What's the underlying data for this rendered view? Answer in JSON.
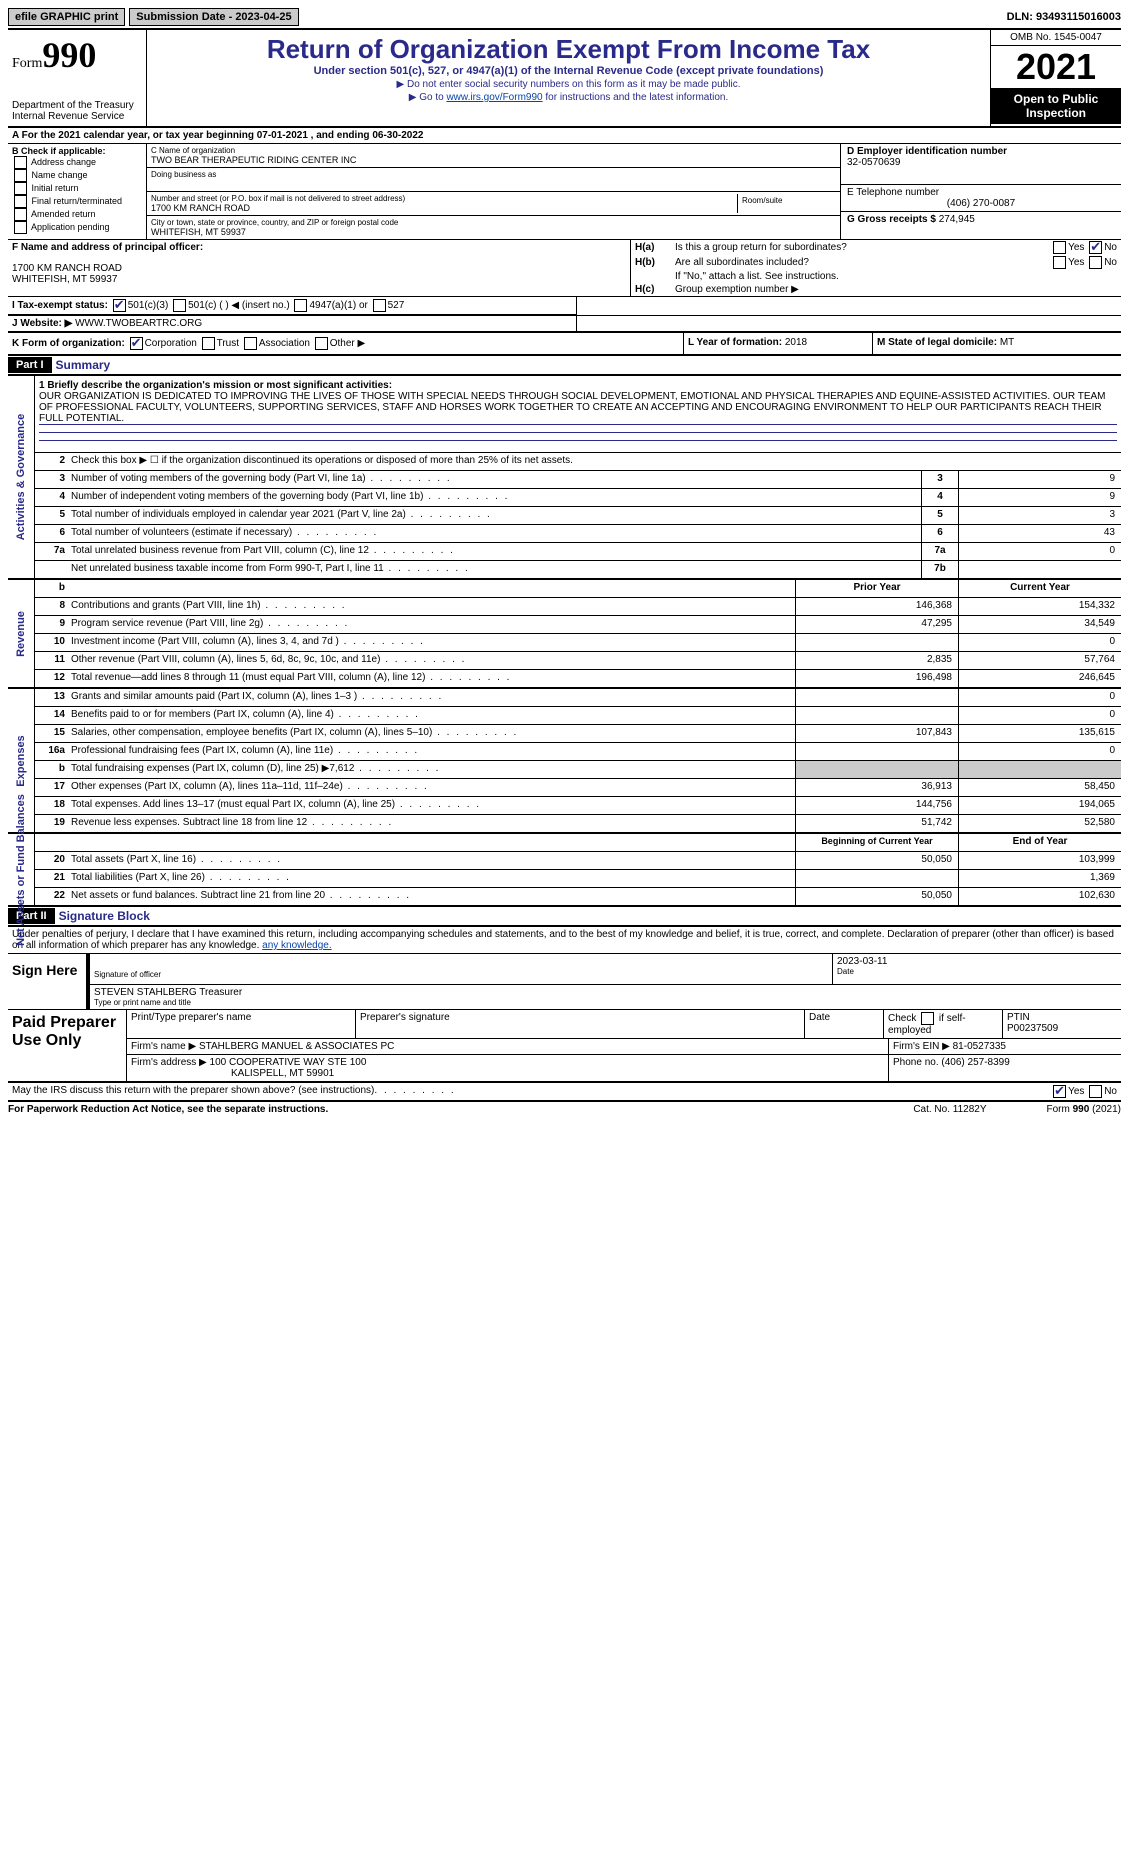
{
  "colors": {
    "accent": "#2a2a8a",
    "link": "#0645ad",
    "shade": "#cbcbcb",
    "black": "#000000",
    "white": "#ffffff"
  },
  "topbar": {
    "efile": "efile GRAPHIC print",
    "sub_label": "Submission Date - 2023-04-25",
    "dln": "DLN: 93493115016003"
  },
  "header": {
    "form_word": "Form",
    "form_num": "990",
    "dept": "Department of the Treasury",
    "irs": "Internal Revenue Service",
    "title": "Return of Organization Exempt From Income Tax",
    "sub": "Under section 501(c), 527, or 4947(a)(1) of the Internal Revenue Code (except private foundations)",
    "note1": "▶ Do not enter social security numbers on this form as it may be made public.",
    "note2_pre": "▶ Go to ",
    "note2_link": "www.irs.gov/Form990",
    "note2_post": " for instructions and the latest information.",
    "omb": "OMB No. 1545-0047",
    "year": "2021",
    "open": "Open to Public Inspection"
  },
  "A": {
    "text": "A For the 2021 calendar year, or tax year beginning 07-01-2021   , and ending 06-30-2022"
  },
  "B": {
    "label": "B Check if applicable:",
    "items": [
      "Address change",
      "Name change",
      "Initial return",
      "Final return/terminated",
      "Amended return",
      "Application pending"
    ]
  },
  "C": {
    "name_lbl": "C Name of organization",
    "name": "TWO BEAR THERAPEUTIC RIDING CENTER INC",
    "dba_lbl": "Doing business as",
    "street_lbl": "Number and street (or P.O. box if mail is not delivered to street address)",
    "street": "1700 KM RANCH ROAD",
    "room_lbl": "Room/suite",
    "city_lbl": "City or town, state or province, country, and ZIP or foreign postal code",
    "city": "WHITEFISH, MT  59937"
  },
  "D": {
    "lbl": "D Employer identification number",
    "val": "32-0570639"
  },
  "E": {
    "lbl": "E Telephone number",
    "val": "(406) 270-0087"
  },
  "G": {
    "lbl": "G Gross receipts $",
    "val": "274,945"
  },
  "F": {
    "lbl": "F  Name and address of principal officer:",
    "line1": "1700 KM RANCH ROAD",
    "line2": "WHITEFISH, MT  59937"
  },
  "H": {
    "a_lbl": "H(a)",
    "a_txt": "Is this a group return for subordinates?",
    "a_yes": false,
    "a_no": true,
    "b_lbl": "H(b)",
    "b_txt": "Are all subordinates included?",
    "b_note": "If \"No,\" attach a list. See instructions.",
    "c_lbl": "H(c)",
    "c_txt": "Group exemption number ▶"
  },
  "I": {
    "lbl": "I  Tax-exempt status:",
    "opts": {
      "c3": true,
      "c_blank": false,
      "a1": false,
      "527": false
    },
    "c3_txt": "501(c)(3)",
    "c_txt": "501(c) (  ) ◀ (insert no.)",
    "a1_txt": "4947(a)(1) or",
    "t527": "527"
  },
  "J": {
    "lbl": "J   Website: ▶",
    "val": "WWW.TWOBEARTRC.ORG"
  },
  "K": {
    "lbl": "K Form of organization:",
    "corp": true,
    "corp_t": "Corporation",
    "trust": false,
    "trust_t": "Trust",
    "assoc": false,
    "assoc_t": "Association",
    "other": false,
    "other_t": "Other ▶"
  },
  "L": {
    "lbl": "L Year of formation:",
    "val": "2018"
  },
  "M": {
    "lbl": "M State of legal domicile:",
    "val": "MT"
  },
  "part1": {
    "hdr": "Part I",
    "title": "Summary"
  },
  "summary": {
    "l1_lbl": "1  Briefly describe the organization's mission or most significant activities:",
    "l1_txt": "OUR ORGANIZATION IS DEDICATED TO IMPROVING THE LIVES OF THOSE WITH SPECIAL NEEDS THROUGH SOCIAL DEVELOPMENT, EMOTIONAL AND PHYSICAL THERAPIES AND EQUINE-ASSISTED ACTIVITIES. OUR TEAM OF PROFESSIONAL FACULTY, VOLUNTEERS, SUPPORTING SERVICES, STAFF AND HORSES WORK TOGETHER TO CREATE AN ACCEPTING AND ENCOURAGING ENVIRONMENT TO HELP OUR PARTICIPANTS REACH THEIR FULL POTENTIAL.",
    "l2": "Check this box ▶ ☐  if the organization discontinued its operations or disposed of more than 25% of its net assets.",
    "rows_ag": [
      {
        "n": "3",
        "t": "Number of voting members of the governing body (Part VI, line 1a)",
        "idx": "3",
        "v": "9"
      },
      {
        "n": "4",
        "t": "Number of independent voting members of the governing body (Part VI, line 1b)",
        "idx": "4",
        "v": "9"
      },
      {
        "n": "5",
        "t": "Total number of individuals employed in calendar year 2021 (Part V, line 2a)",
        "idx": "5",
        "v": "3"
      },
      {
        "n": "6",
        "t": "Total number of volunteers (estimate if necessary)",
        "idx": "6",
        "v": "43"
      },
      {
        "n": "7a",
        "t": "Total unrelated business revenue from Part VIII, column (C), line 12",
        "idx": "7a",
        "v": "0"
      },
      {
        "n": "",
        "t": "Net unrelated business taxable income from Form 990-T, Part I, line 11",
        "idx": "7b",
        "v": ""
      }
    ],
    "col_hdr": {
      "b": "b",
      "prior": "Prior Year",
      "curr": "Current Year"
    },
    "rev": [
      {
        "n": "8",
        "t": "Contributions and grants (Part VIII, line 1h)",
        "p": "146,368",
        "c": "154,332"
      },
      {
        "n": "9",
        "t": "Program service revenue (Part VIII, line 2g)",
        "p": "47,295",
        "c": "34,549"
      },
      {
        "n": "10",
        "t": "Investment income (Part VIII, column (A), lines 3, 4, and 7d )",
        "p": "",
        "c": "0"
      },
      {
        "n": "11",
        "t": "Other revenue (Part VIII, column (A), lines 5, 6d, 8c, 9c, 10c, and 11e)",
        "p": "2,835",
        "c": "57,764"
      },
      {
        "n": "12",
        "t": "Total revenue—add lines 8 through 11 (must equal Part VIII, column (A), line 12)",
        "p": "196,498",
        "c": "246,645"
      }
    ],
    "exp": [
      {
        "n": "13",
        "t": "Grants and similar amounts paid (Part IX, column (A), lines 1–3 )",
        "p": "",
        "c": "0"
      },
      {
        "n": "14",
        "t": "Benefits paid to or for members (Part IX, column (A), line 4)",
        "p": "",
        "c": "0"
      },
      {
        "n": "15",
        "t": "Salaries, other compensation, employee benefits (Part IX, column (A), lines 5–10)",
        "p": "107,843",
        "c": "135,615"
      },
      {
        "n": "16a",
        "t": "Professional fundraising fees (Part IX, column (A), line 11e)",
        "p": "",
        "c": "0"
      },
      {
        "n": "b",
        "t": "Total fundraising expenses (Part IX, column (D), line 25) ▶7,612",
        "p": "shade",
        "c": "shade"
      },
      {
        "n": "17",
        "t": "Other expenses (Part IX, column (A), lines 11a–11d, 11f–24e)",
        "p": "36,913",
        "c": "58,450"
      },
      {
        "n": "18",
        "t": "Total expenses. Add lines 13–17 (must equal Part IX, column (A), line 25)",
        "p": "144,756",
        "c": "194,065"
      },
      {
        "n": "19",
        "t": "Revenue less expenses. Subtract line 18 from line 12",
        "p": "51,742",
        "c": "52,580"
      }
    ],
    "net_hdr": {
      "p": "Beginning of Current Year",
      "c": "End of Year"
    },
    "net": [
      {
        "n": "20",
        "t": "Total assets (Part X, line 16)",
        "p": "50,050",
        "c": "103,999"
      },
      {
        "n": "21",
        "t": "Total liabilities (Part X, line 26)",
        "p": "",
        "c": "1,369"
      },
      {
        "n": "22",
        "t": "Net assets or fund balances. Subtract line 21 from line 20",
        "p": "50,050",
        "c": "102,630"
      }
    ]
  },
  "sides": {
    "ag": "Activities & Governance",
    "rev": "Revenue",
    "exp": "Expenses",
    "net": "Net Assets or Fund Balances"
  },
  "part2": {
    "hdr": "Part II",
    "title": "Signature Block"
  },
  "sig": {
    "decl": "Under penalties of perjury, I declare that I have examined this return, including accompanying schedules and statements, and to the best of my knowledge and belief, it is true, correct, and complete. Declaration of preparer (other than officer) is based on all information of which preparer has any knowledge.",
    "sign_here": "Sign Here",
    "sig_officer_lbl": "Signature of officer",
    "date": "2023-03-11",
    "date_lbl": "Date",
    "name": "STEVEN STAHLBERG Treasurer",
    "name_lbl": "Type or print name and title"
  },
  "prep": {
    "title": "Paid Preparer Use Only",
    "h1": "Print/Type preparer's name",
    "h2": "Preparer's signature",
    "h3": "Date",
    "h4_pre": "Check",
    "h4_post": "if self-employed",
    "h5": "PTIN",
    "ptin": "P00237509",
    "firm_lbl": "Firm's name   ▶",
    "firm": "STAHLBERG MANUEL & ASSOCIATES PC",
    "ein_lbl": "Firm's EIN ▶",
    "ein": "81-0527335",
    "addr_lbl": "Firm's address ▶",
    "addr1": "100 COOPERATIVE WAY STE 100",
    "addr2": "KALISPELL, MT  59901",
    "phone_lbl": "Phone no.",
    "phone": "(406) 257-8399"
  },
  "discuss": {
    "txt": "May the IRS discuss this return with the preparer shown above? (see instructions)",
    "yes": true,
    "no": false,
    "y": "Yes",
    "n": "No"
  },
  "footer": {
    "l": "For Paperwork Reduction Act Notice, see the separate instructions.",
    "m": "Cat. No. 11282Y",
    "r": "Form 990 (2021)"
  }
}
